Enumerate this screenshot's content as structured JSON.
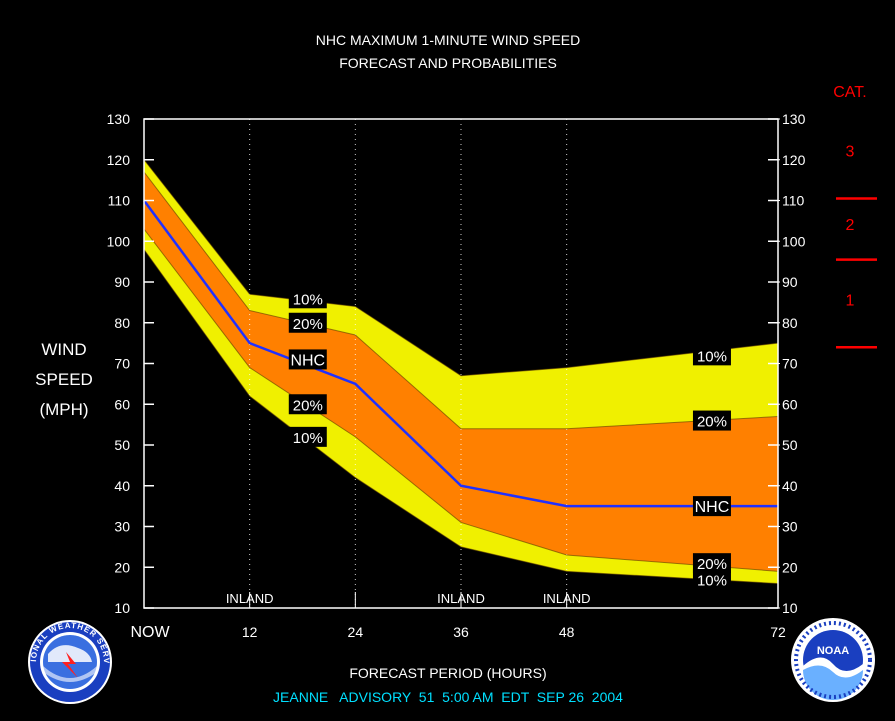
{
  "chart_data": {
    "type": "area",
    "title": "NHC MAXIMUM 1-MINUTE WIND SPEED",
    "subtitle": "FORECAST AND PROBABILITIES",
    "ylabel": [
      "WIND",
      "SPEED",
      "(MPH)"
    ],
    "xlabel": "FORECAST PERIOD (HOURS)",
    "advisory": "JEANNE   ADVISORY  51  5:00 AM  EDT  SEP 26  2004",
    "ylim": [
      10,
      130
    ],
    "xlim": [
      0,
      72
    ],
    "yticks": [
      10,
      20,
      30,
      40,
      50,
      60,
      70,
      80,
      90,
      100,
      110,
      120,
      130
    ],
    "xticks": [
      {
        "value": 0,
        "label": "NOW"
      },
      {
        "value": 12,
        "label": "12"
      },
      {
        "value": 24,
        "label": "24"
      },
      {
        "value": 36,
        "label": "36"
      },
      {
        "value": 48,
        "label": "48"
      },
      {
        "value": 72,
        "label": "72"
      }
    ],
    "x": [
      0,
      12,
      24,
      36,
      48,
      72
    ],
    "series": [
      {
        "name": "10%",
        "values": [
          120,
          87,
          84,
          67,
          69,
          75
        ],
        "color": "#f0f000"
      },
      {
        "name": "20%",
        "values": [
          117,
          83,
          77,
          54,
          54,
          57
        ],
        "color": "#ff8000"
      },
      {
        "name": "NHC",
        "values": [
          110,
          75,
          65,
          40,
          35,
          35
        ],
        "color": "#2030ff"
      },
      {
        "name": "20%",
        "values": [
          103,
          69,
          52,
          31,
          23,
          19
        ],
        "color": "#ff8000"
      },
      {
        "name": "10%",
        "values": [
          98,
          62,
          42,
          25,
          19,
          16
        ],
        "color": "#f0f000"
      }
    ],
    "inland_markers": [
      {
        "x": 12,
        "label": "INLAND"
      },
      {
        "x": 36,
        "label": "INLAND"
      },
      {
        "x": 48,
        "label": "INLAND"
      }
    ],
    "gridlines_x": [
      12,
      24,
      36,
      48
    ],
    "labels": [
      {
        "text": "10%",
        "x": 18.6,
        "y": 86
      },
      {
        "text": "20%",
        "x": 18.6,
        "y": 80
      },
      {
        "text": "NHC",
        "x": 18.6,
        "y": 71
      },
      {
        "text": "20%",
        "x": 18.6,
        "y": 60
      },
      {
        "text": "10%",
        "x": 18.6,
        "y": 52
      },
      {
        "text": "10%",
        "x": 64.5,
        "y": 72
      },
      {
        "text": "20%",
        "x": 64.5,
        "y": 56
      },
      {
        "text": "NHC",
        "x": 64.5,
        "y": 35
      },
      {
        "text": "20%",
        "x": 64.5,
        "y": 21
      },
      {
        "text": "10%",
        "x": 64.5,
        "y": 17
      }
    ],
    "category_scale": {
      "title": "CAT.",
      "color": "#ff0000",
      "categories": [
        {
          "label": "3",
          "y": 122
        },
        {
          "label": "2",
          "y": 104
        },
        {
          "label": "1",
          "y": 85.5
        }
      ],
      "thresholds": [
        110.5,
        95.5,
        74
      ]
    },
    "colors": {
      "background": "#000000",
      "axes": "#ffffff",
      "outer_band": "#f0f000",
      "inner_band": "#ff8000",
      "forecast_line": "#2030ff",
      "advisory_text": "#00e0ff",
      "category": "#ff0000"
    }
  },
  "logos": {
    "left": {
      "name": "nws-logo",
      "text": "NATIONAL WEATHER SERVICE"
    },
    "right": {
      "name": "noaa-logo",
      "text": "NOAA"
    }
  }
}
